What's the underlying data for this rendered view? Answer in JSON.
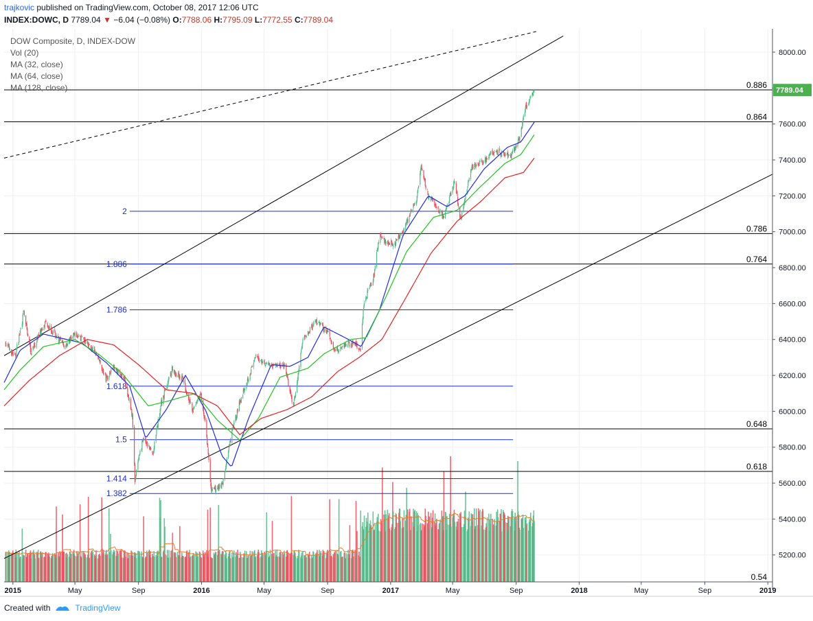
{
  "header": {
    "author": "trajkovic",
    "published_text": "published on TradingView.com, October 08, 2017 12:06 UTC",
    "symbol": "INDEX:DOWC, D",
    "last": "7789.04",
    "change_arrow": "▼",
    "change": "−6.04 (−0.08%)",
    "o_label": "O:",
    "o": "7788.06",
    "h_label": "H:",
    "h": "7795.09",
    "l_label": "L:",
    "l": "7772.55",
    "c_label": "C:",
    "c": "7789.04"
  },
  "legend": [
    "DOW Composite, D, INDEX-DOW",
    "Vol (20)",
    "MA (32, close)",
    "MA (64, close)",
    "MA (128, close)"
  ],
  "footer": {
    "created_with": "Created with",
    "brand": "TradingView"
  },
  "colors": {
    "up": "#53b987",
    "down": "#eb4d5c",
    "ma32": "#1f2be0",
    "ma64": "#22c322",
    "ma128": "#e02323",
    "vol_ma": "#f07a26",
    "fib_ext": "#1c2fd0",
    "price_tag": "#4caf50"
  },
  "chart_data": {
    "type": "candlestick",
    "title": "DOW Composite, D, INDEX-DOW",
    "ylim": [
      5050,
      8130
    ],
    "y_ticks": [
      5200,
      5400,
      5600,
      5800,
      6000,
      6200,
      6400,
      6600,
      6800,
      7000,
      7200,
      7400,
      7600,
      7800,
      8000
    ],
    "y_tick_labels": [
      "5200.00",
      "5400.00",
      "5600.00",
      "5800.00",
      "6000.00",
      "6200.00",
      "6400.00",
      "6600.00",
      "6800.00",
      "7000.00",
      "7200.00",
      "7400.00",
      "7600.00",
      "7800.00",
      "8000.00"
    ],
    "x_range": [
      "2014-12-15",
      "2019-01-10"
    ],
    "x_ticks": [
      {
        "date": "2015-01-01",
        "label": "2015"
      },
      {
        "date": "2015-05-01",
        "label": "May"
      },
      {
        "date": "2015-09-01",
        "label": "Sep"
      },
      {
        "date": "2016-01-01",
        "label": "2016"
      },
      {
        "date": "2016-05-01",
        "label": "May"
      },
      {
        "date": "2016-09-01",
        "label": "Sep"
      },
      {
        "date": "2017-01-01",
        "label": "2017"
      },
      {
        "date": "2017-05-01",
        "label": "May"
      },
      {
        "date": "2017-09-01",
        "label": "Sep"
      },
      {
        "date": "2018-01-01",
        "label": "2018"
      },
      {
        "date": "2018-05-01",
        "label": "May"
      },
      {
        "date": "2018-09-01",
        "label": "Sep"
      },
      {
        "date": "2019-01-01",
        "label": "2019"
      }
    ],
    "close_anchors": [
      [
        "2014-12-18",
        6380
      ],
      [
        "2015-01-05",
        6300
      ],
      [
        "2015-01-22",
        6550
      ],
      [
        "2015-02-05",
        6330
      ],
      [
        "2015-03-05",
        6500
      ],
      [
        "2015-03-20",
        6440
      ],
      [
        "2015-04-10",
        6360
      ],
      [
        "2015-05-01",
        6430
      ],
      [
        "2015-05-25",
        6380
      ],
      [
        "2015-06-15",
        6300
      ],
      [
        "2015-06-30",
        6180
      ],
      [
        "2015-07-15",
        6250
      ],
      [
        "2015-08-05",
        6180
      ],
      [
        "2015-08-20",
        5980
      ],
      [
        "2015-08-25",
        5620
      ],
      [
        "2015-09-10",
        5850
      ],
      [
        "2015-09-29",
        5760
      ],
      [
        "2015-10-15",
        6050
      ],
      [
        "2015-11-05",
        6230
      ],
      [
        "2015-11-25",
        6180
      ],
      [
        "2015-12-15",
        6000
      ],
      [
        "2015-12-30",
        6100
      ],
      [
        "2016-01-10",
        5900
      ],
      [
        "2016-01-20",
        5550
      ],
      [
        "2016-02-11",
        5600
      ],
      [
        "2016-03-01",
        5900
      ],
      [
        "2016-03-20",
        6100
      ],
      [
        "2016-04-15",
        6300
      ],
      [
        "2016-05-10",
        6260
      ],
      [
        "2016-06-10",
        6250
      ],
      [
        "2016-06-27",
        6020
      ],
      [
        "2016-07-15",
        6400
      ],
      [
        "2016-08-10",
        6500
      ],
      [
        "2016-09-01",
        6440
      ],
      [
        "2016-09-15",
        6340
      ],
      [
        "2016-10-10",
        6380
      ],
      [
        "2016-10-25",
        6370
      ],
      [
        "2016-11-04",
        6350
      ],
      [
        "2016-11-10",
        6600
      ],
      [
        "2016-11-30",
        6760
      ],
      [
        "2016-12-10",
        6980
      ],
      [
        "2016-12-20",
        6950
      ],
      [
        "2017-01-10",
        6930
      ],
      [
        "2017-02-01",
        7050
      ],
      [
        "2017-02-20",
        7180
      ],
      [
        "2017-03-01",
        7350
      ],
      [
        "2017-03-15",
        7200
      ],
      [
        "2017-04-13",
        7080
      ],
      [
        "2017-05-05",
        7280
      ],
      [
        "2017-05-17",
        7060
      ],
      [
        "2017-06-05",
        7350
      ],
      [
        "2017-06-30",
        7390
      ],
      [
        "2017-07-20",
        7450
      ],
      [
        "2017-08-10",
        7430
      ],
      [
        "2017-08-21",
        7420
      ],
      [
        "2017-09-05",
        7500
      ],
      [
        "2017-09-20",
        7700
      ],
      [
        "2017-10-06",
        7789.04
      ]
    ],
    "series": [
      {
        "name": "MA (32, close)",
        "color": "#1f2be0",
        "points": [
          [
            "2014-12-15",
            6160
          ],
          [
            "2015-01-15",
            6340
          ],
          [
            "2015-03-01",
            6430
          ],
          [
            "2015-05-15",
            6380
          ],
          [
            "2015-07-01",
            6270
          ],
          [
            "2015-08-15",
            6140
          ],
          [
            "2015-09-15",
            5850
          ],
          [
            "2015-10-25",
            6010
          ],
          [
            "2015-12-01",
            6200
          ],
          [
            "2016-01-10",
            6000
          ],
          [
            "2016-02-10",
            5750
          ],
          [
            "2016-02-28",
            5690
          ],
          [
            "2016-04-01",
            5960
          ],
          [
            "2016-05-15",
            6260
          ],
          [
            "2016-06-20",
            6250
          ],
          [
            "2016-07-25",
            6300
          ],
          [
            "2016-08-25",
            6470
          ],
          [
            "2016-10-05",
            6410
          ],
          [
            "2016-11-05",
            6360
          ],
          [
            "2016-12-10",
            6560
          ],
          [
            "2017-01-25",
            6980
          ],
          [
            "2017-03-15",
            7200
          ],
          [
            "2017-04-20",
            7140
          ],
          [
            "2017-05-25",
            7200
          ],
          [
            "2017-07-01",
            7350
          ],
          [
            "2017-08-15",
            7470
          ],
          [
            "2017-09-10",
            7500
          ],
          [
            "2017-10-06",
            7610
          ]
        ]
      },
      {
        "name": "MA (64, close)",
        "color": "#22c322",
        "points": [
          [
            "2014-12-15",
            6120
          ],
          [
            "2015-01-15",
            6230
          ],
          [
            "2015-03-01",
            6360
          ],
          [
            "2015-05-01",
            6400
          ],
          [
            "2015-06-15",
            6320
          ],
          [
            "2015-08-01",
            6210
          ],
          [
            "2015-09-20",
            6030
          ],
          [
            "2015-11-01",
            6060
          ],
          [
            "2015-12-20",
            6100
          ],
          [
            "2016-02-01",
            5950
          ],
          [
            "2016-03-15",
            5840
          ],
          [
            "2016-04-20",
            5960
          ],
          [
            "2016-06-01",
            6190
          ],
          [
            "2016-07-25",
            6240
          ],
          [
            "2016-08-25",
            6320
          ],
          [
            "2016-10-15",
            6400
          ],
          [
            "2016-11-15",
            6410
          ],
          [
            "2016-12-25",
            6650
          ],
          [
            "2017-02-01",
            6890
          ],
          [
            "2017-03-25",
            7080
          ],
          [
            "2017-05-10",
            7120
          ],
          [
            "2017-06-20",
            7240
          ],
          [
            "2017-08-10",
            7380
          ],
          [
            "2017-09-10",
            7430
          ],
          [
            "2017-10-06",
            7540
          ]
        ]
      },
      {
        "name": "MA (128, close)",
        "color": "#e02323",
        "points": [
          [
            "2014-12-15",
            6030
          ],
          [
            "2015-02-01",
            6170
          ],
          [
            "2015-04-01",
            6310
          ],
          [
            "2015-05-25",
            6400
          ],
          [
            "2015-07-15",
            6370
          ],
          [
            "2015-09-01",
            6260
          ],
          [
            "2015-10-25",
            6120
          ],
          [
            "2015-12-15",
            6100
          ],
          [
            "2016-02-01",
            6030
          ],
          [
            "2016-03-15",
            5870
          ],
          [
            "2016-04-25",
            5960
          ],
          [
            "2016-06-15",
            6010
          ],
          [
            "2016-08-01",
            6080
          ],
          [
            "2016-09-20",
            6220
          ],
          [
            "2016-11-01",
            6300
          ],
          [
            "2016-12-15",
            6400
          ],
          [
            "2017-02-01",
            6640
          ],
          [
            "2017-03-20",
            6880
          ],
          [
            "2017-05-10",
            7060
          ],
          [
            "2017-06-25",
            7170
          ],
          [
            "2017-08-10",
            7300
          ],
          [
            "2017-09-15",
            7330
          ],
          [
            "2017-10-06",
            7410
          ]
        ]
      }
    ],
    "fib_retracement": [
      {
        "label": "0.886",
        "value": 7790
      },
      {
        "label": "0.864",
        "value": 7612
      },
      {
        "label": "0.786",
        "value": 6990
      },
      {
        "label": "0.764",
        "value": 6820
      },
      {
        "label": "0.648",
        "value": 5902
      },
      {
        "label": "0.618",
        "value": 5665
      },
      {
        "label": "0.54",
        "value": 5050
      }
    ],
    "fib_extension": [
      {
        "label": "2",
        "value": 7114
      },
      {
        "label": "1.886",
        "value": 6820
      },
      {
        "label": "1.786",
        "value": 6565
      },
      {
        "label": "1.618",
        "value": 6140
      },
      {
        "label": "1.5",
        "value": 5842
      },
      {
        "label": "1.414",
        "value": 5625
      },
      {
        "label": "1.382",
        "value": 5542
      }
    ],
    "fib_extension_range": [
      "2015-08-15",
      "2017-08-26"
    ],
    "trend_lines": [
      {
        "style": "solid",
        "from": [
          "2014-12-15",
          6310
        ],
        "to": [
          "2017-12-01",
          8090
        ]
      },
      {
        "style": "solid",
        "from": [
          "2014-12-15",
          5180
        ],
        "to": [
          "2019-01-10",
          7320
        ]
      },
      {
        "style": "dashed",
        "from": [
          "2014-12-15",
          7410
        ],
        "to": [
          "2017-10-10",
          8115
        ]
      }
    ],
    "volume": {
      "name": "Vol (20)",
      "low_period_end": "2016-11-04"
    },
    "last_price_label": "7789.04"
  }
}
